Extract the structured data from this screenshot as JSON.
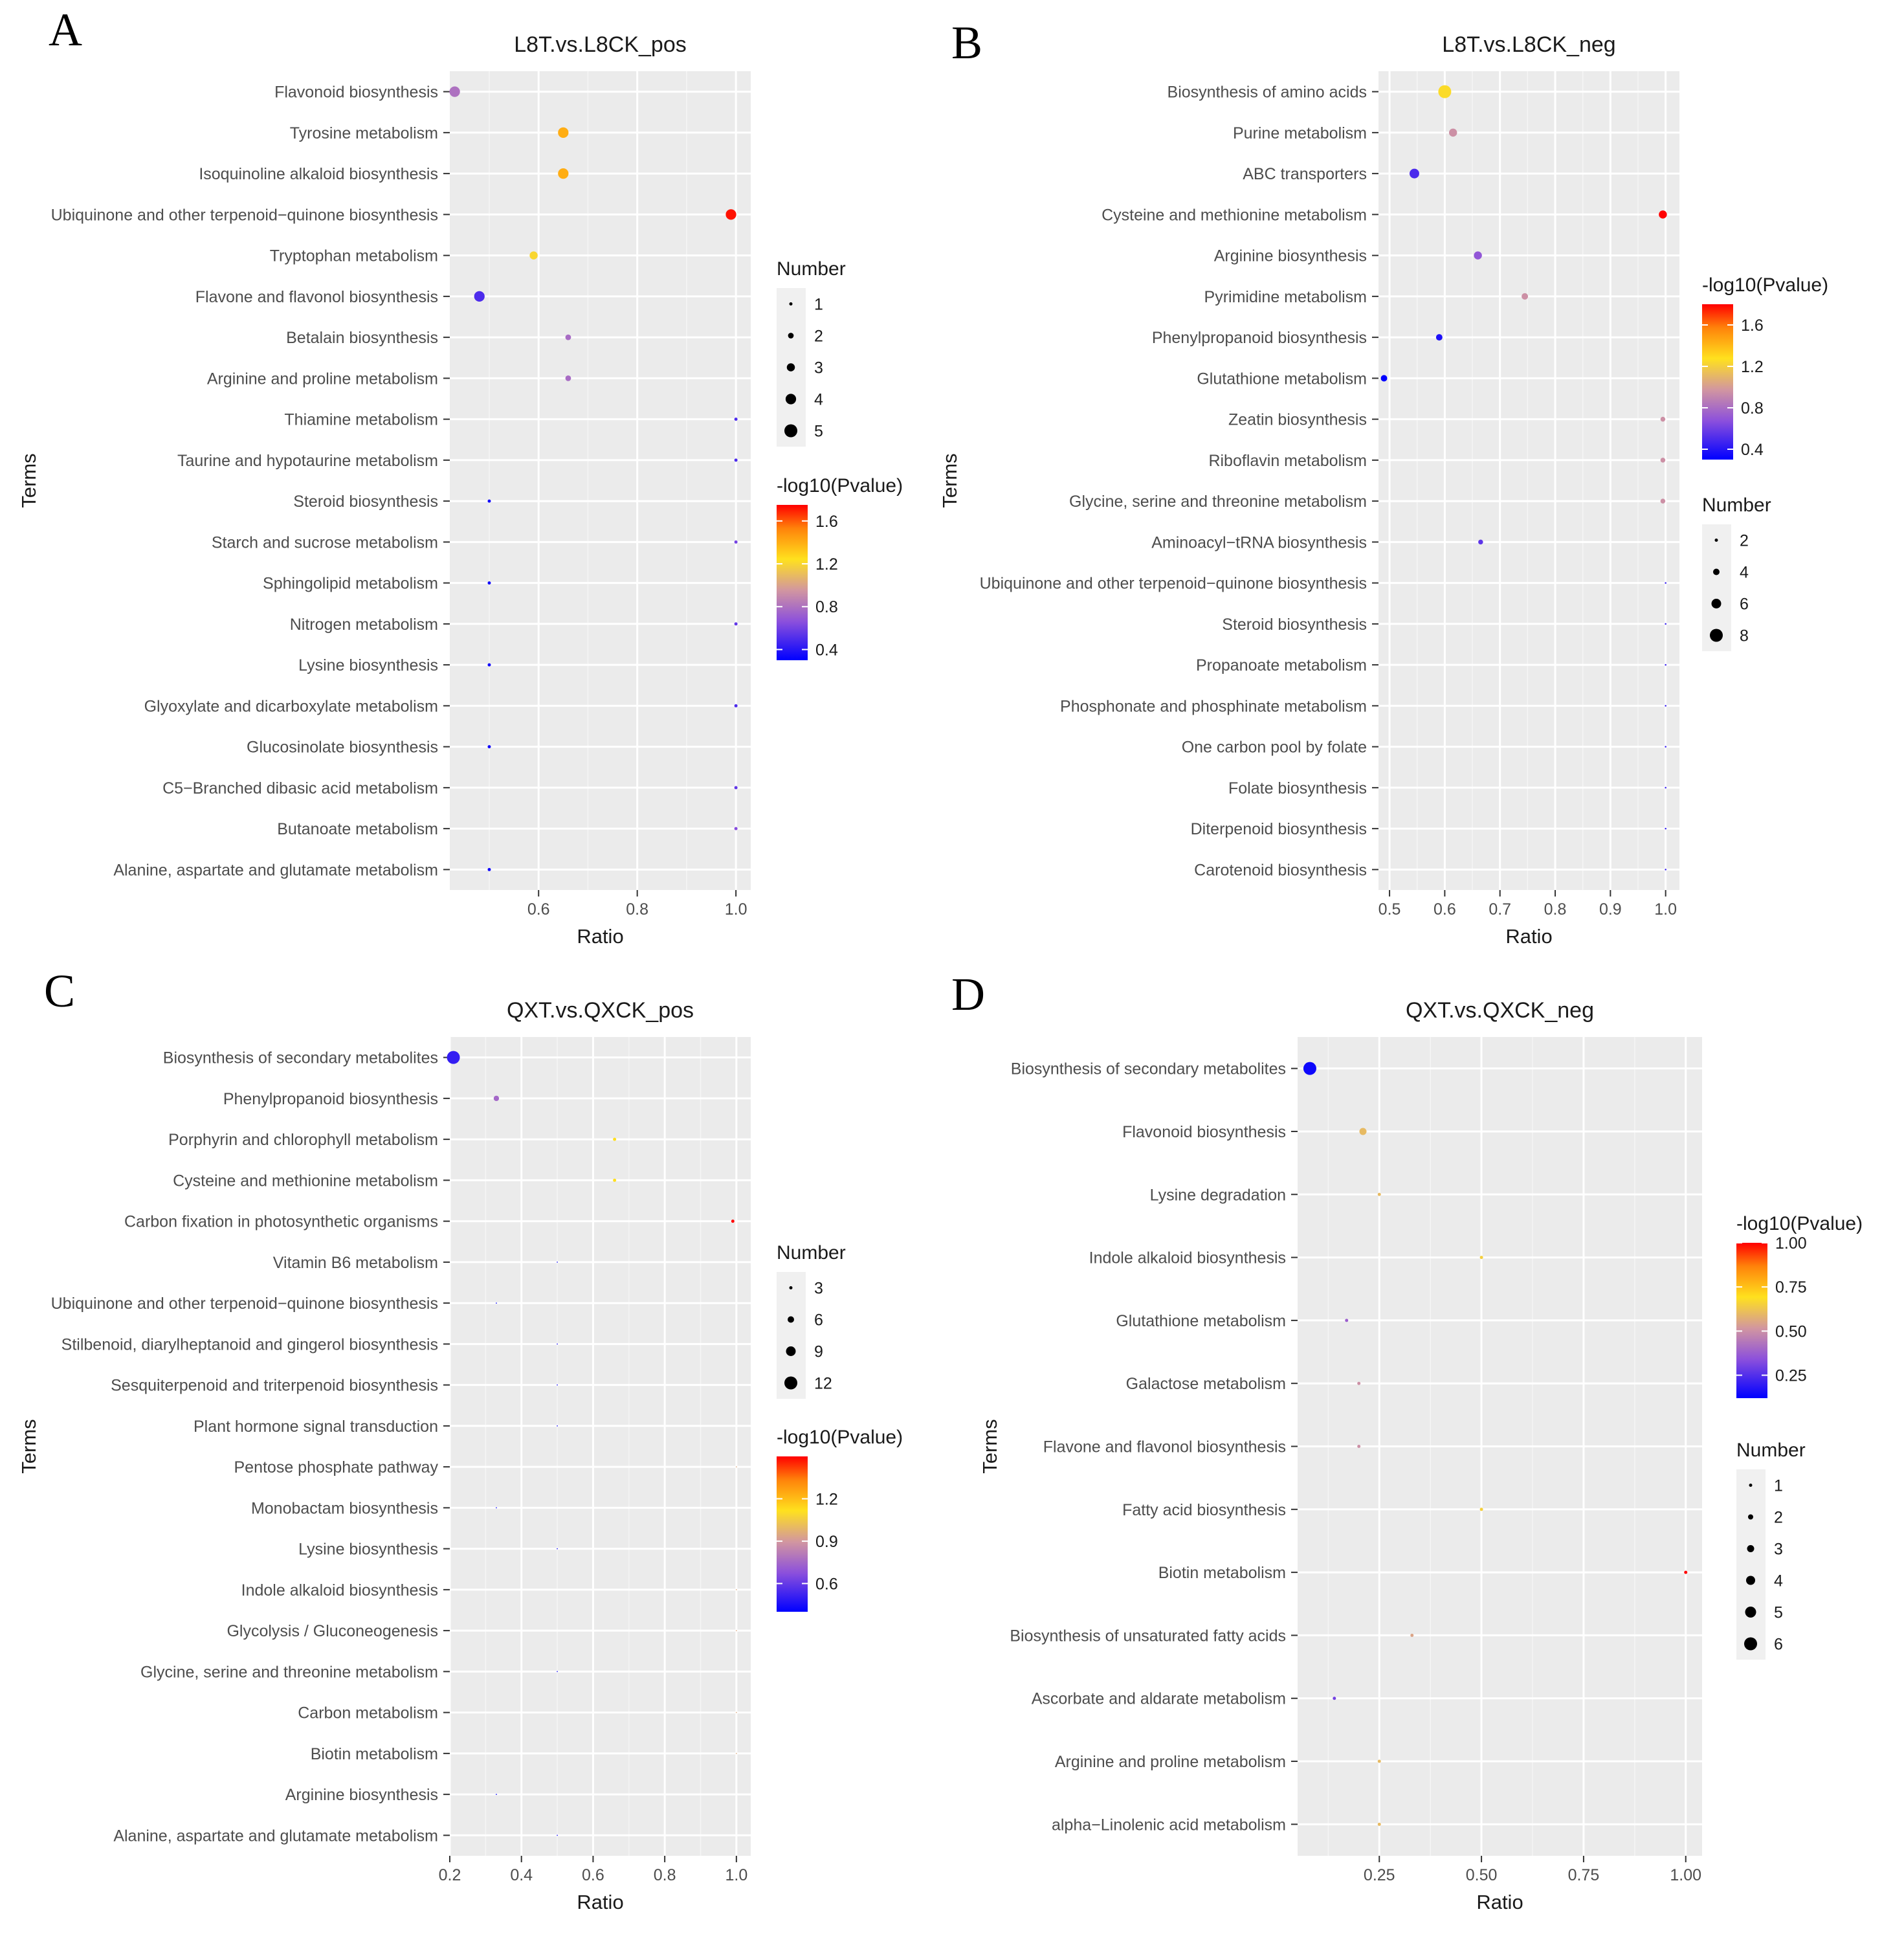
{
  "chart_data": [
    {
      "label": "A",
      "type": "scatter",
      "title": "L8T.vs.L8CK_pos",
      "xlabel": "Ratio",
      "ylabel": "Terms",
      "xlim": [
        0.42,
        1.03
      ],
      "xticks": [
        0.6,
        0.8,
        1.0
      ],
      "xtick_labels": [
        "0.6",
        "0.8",
        "1.0"
      ],
      "size_legend": {
        "title": "Number",
        "values": [
          1,
          2,
          3,
          4,
          5
        ],
        "labels": [
          "1",
          "2",
          "3",
          "4",
          "5"
        ]
      },
      "color_legend": {
        "title": "-log10(Pvalue)",
        "min": 0.3,
        "max": 1.75,
        "ticks": [
          1.6,
          1.2,
          0.8,
          0.4
        ],
        "labels": [
          "1.6",
          "1.2",
          "0.8",
          "0.4"
        ]
      },
      "points": [
        {
          "term": "Flavonoid biosynthesis",
          "ratio": 0.43,
          "number": 4,
          "logp": 0.8
        },
        {
          "term": "Tyrosine metabolism",
          "ratio": 0.65,
          "number": 4,
          "logp": 1.4
        },
        {
          "term": "Isoquinoline alkaloid biosynthesis",
          "ratio": 0.65,
          "number": 4,
          "logp": 1.4
        },
        {
          "term": "Ubiquinone and other terpenoid−quinone biosynthesis",
          "ratio": 0.99,
          "number": 4,
          "logp": 1.72
        },
        {
          "term": "Tryptophan metabolism",
          "ratio": 0.59,
          "number": 3,
          "logp": 1.2
        },
        {
          "term": "Flavone and flavonol biosynthesis",
          "ratio": 0.48,
          "number": 4,
          "logp": 0.5
        },
        {
          "term": "Betalain biosynthesis",
          "ratio": 0.66,
          "number": 2,
          "logp": 0.78
        },
        {
          "term": "Arginine and proline metabolism",
          "ratio": 0.66,
          "number": 2,
          "logp": 0.78
        },
        {
          "term": "Thiamine metabolism",
          "ratio": 1.0,
          "number": 1,
          "logp": 0.5
        },
        {
          "term": "Taurine and hypotaurine metabolism",
          "ratio": 1.0,
          "number": 1,
          "logp": 0.5
        },
        {
          "term": "Steroid biosynthesis",
          "ratio": 0.5,
          "number": 1,
          "logp": 0.35
        },
        {
          "term": "Starch and sucrose metabolism",
          "ratio": 1.0,
          "number": 1,
          "logp": 0.6
        },
        {
          "term": "Sphingolipid metabolism",
          "ratio": 0.5,
          "number": 1,
          "logp": 0.35
        },
        {
          "term": "Nitrogen metabolism",
          "ratio": 1.0,
          "number": 1,
          "logp": 0.55
        },
        {
          "term": "Lysine biosynthesis",
          "ratio": 0.5,
          "number": 1,
          "logp": 0.35
        },
        {
          "term": "Glyoxylate and dicarboxylate metabolism",
          "ratio": 1.0,
          "number": 1,
          "logp": 0.5
        },
        {
          "term": "Glucosinolate biosynthesis",
          "ratio": 0.5,
          "number": 1,
          "logp": 0.35
        },
        {
          "term": "C5−Branched dibasic acid metabolism",
          "ratio": 1.0,
          "number": 1,
          "logp": 0.55
        },
        {
          "term": "Butanoate metabolism",
          "ratio": 1.0,
          "number": 1,
          "logp": 0.65
        },
        {
          "term": "Alanine, aspartate and glutamate metabolism",
          "ratio": 0.5,
          "number": 1,
          "logp": 0.35
        }
      ]
    },
    {
      "label": "B",
      "type": "scatter",
      "title": "L8T.vs.L8CK_neg",
      "xlabel": "Ratio",
      "ylabel": "Terms",
      "xlim": [
        0.48,
        1.025
      ],
      "xticks": [
        0.5,
        0.6,
        0.7,
        0.8,
        0.9,
        1.0
      ],
      "xtick_labels": [
        "0.5",
        "0.6",
        "0.7",
        "0.8",
        "0.9",
        "1.0"
      ],
      "size_legend": {
        "title": "Number",
        "values": [
          2,
          4,
          6,
          8
        ],
        "labels": [
          "2",
          "4",
          "6",
          "8"
        ]
      },
      "color_legend": {
        "title": "-log10(Pvalue)",
        "min": 0.3,
        "max": 1.8,
        "ticks": [
          1.6,
          1.2,
          0.8,
          0.4
        ],
        "labels": [
          "1.6",
          "1.2",
          "0.8",
          "0.4"
        ]
      },
      "points": [
        {
          "term": "Biosynthesis of amino acids",
          "ratio": 0.6,
          "number": 8,
          "logp": 1.25
        },
        {
          "term": "Purine metabolism",
          "ratio": 0.615,
          "number": 5,
          "logp": 0.95
        },
        {
          "term": "ABC transporters",
          "ratio": 0.545,
          "number": 6,
          "logp": 0.5
        },
        {
          "term": "Cysteine and methionine metabolism",
          "ratio": 0.995,
          "number": 5,
          "logp": 1.8
        },
        {
          "term": "Arginine biosynthesis",
          "ratio": 0.66,
          "number": 5,
          "logp": 0.7
        },
        {
          "term": "Pyrimidine metabolism",
          "ratio": 0.745,
          "number": 4,
          "logp": 0.95
        },
        {
          "term": "Phenylpropanoid biosynthesis",
          "ratio": 0.59,
          "number": 4,
          "logp": 0.38
        },
        {
          "term": "Glutathione metabolism",
          "ratio": 0.49,
          "number": 4,
          "logp": 0.3
        },
        {
          "term": "Zeatin biosynthesis",
          "ratio": 0.995,
          "number": 3,
          "logp": 0.95
        },
        {
          "term": "Riboflavin metabolism",
          "ratio": 0.995,
          "number": 3,
          "logp": 0.95
        },
        {
          "term": "Glycine, serine and threonine metabolism",
          "ratio": 0.995,
          "number": 3,
          "logp": 0.95
        },
        {
          "term": "Aminoacyl−tRNA biosynthesis",
          "ratio": 0.665,
          "number": 3,
          "logp": 0.55
        },
        {
          "term": "Ubiquinone and other terpenoid−quinone biosynthesis",
          "ratio": 1.0,
          "number": 1,
          "logp": 0.45
        },
        {
          "term": "Steroid biosynthesis",
          "ratio": 1.0,
          "number": 1,
          "logp": 0.45
        },
        {
          "term": "Propanoate metabolism",
          "ratio": 1.0,
          "number": 1,
          "logp": 0.45
        },
        {
          "term": "Phosphonate and phosphinate metabolism",
          "ratio": 1.0,
          "number": 1,
          "logp": 0.45
        },
        {
          "term": "One carbon pool by folate",
          "ratio": 1.0,
          "number": 1,
          "logp": 0.45
        },
        {
          "term": "Folate biosynthesis",
          "ratio": 1.0,
          "number": 1,
          "logp": 0.45
        },
        {
          "term": "Diterpenoid biosynthesis",
          "ratio": 1.0,
          "number": 1,
          "logp": 0.45
        },
        {
          "term": "Carotenoid biosynthesis",
          "ratio": 1.0,
          "number": 1,
          "logp": 0.45
        }
      ]
    },
    {
      "label": "C",
      "type": "scatter",
      "title": "QXT.vs.QXCK_pos",
      "xlabel": "Ratio",
      "ylabel": "Terms",
      "xlim": [
        0.2,
        1.04
      ],
      "xticks": [
        0.2,
        0.4,
        0.6,
        0.8,
        1.0
      ],
      "xtick_labels": [
        "0.2",
        "0.4",
        "0.6",
        "0.8",
        "1.0"
      ],
      "size_legend": {
        "title": "Number",
        "values": [
          3,
          6,
          9,
          12
        ],
        "labels": [
          "3",
          "6",
          "9",
          "12"
        ]
      },
      "color_legend": {
        "title": "-log10(Pvalue)",
        "min": 0.4,
        "max": 1.5,
        "ticks": [
          1.2,
          0.9,
          0.6
        ],
        "labels": [
          "1.2",
          "0.9",
          "0.6"
        ]
      },
      "points": [
        {
          "term": "Biosynthesis of secondary metabolites",
          "ratio": 0.21,
          "number": 12,
          "logp": 0.5
        },
        {
          "term": "Phenylpropanoid biosynthesis",
          "ratio": 0.33,
          "number": 5,
          "logp": 0.75
        },
        {
          "term": "Porphyrin and chlorophyll metabolism",
          "ratio": 0.66,
          "number": 3,
          "logp": 1.12
        },
        {
          "term": "Cysteine and methionine metabolism",
          "ratio": 0.66,
          "number": 3,
          "logp": 1.12
        },
        {
          "term": "Carbon fixation in photosynthetic organisms",
          "ratio": 0.99,
          "number": 3,
          "logp": 1.5
        },
        {
          "term": "Vitamin B6 metabolism",
          "ratio": 0.5,
          "number": 1,
          "logp": 0.45
        },
        {
          "term": "Ubiquinone and other terpenoid−quinone biosynthesis",
          "ratio": 0.33,
          "number": 1,
          "logp": 0.42
        },
        {
          "term": "Stilbenoid, diarylheptanoid and gingerol biosynthesis",
          "ratio": 0.5,
          "number": 1,
          "logp": 0.45
        },
        {
          "term": "Sesquiterpenoid and triterpenoid biosynthesis",
          "ratio": 0.5,
          "number": 1,
          "logp": 0.45
        },
        {
          "term": "Plant hormone signal transduction",
          "ratio": 0.5,
          "number": 1,
          "logp": 0.45
        },
        {
          "term": "Pentose phosphate pathway",
          "ratio": 1.0,
          "number": 1,
          "logp": 0.95
        },
        {
          "term": "Monobactam biosynthesis",
          "ratio": 0.33,
          "number": 1,
          "logp": 0.42
        },
        {
          "term": "Lysine biosynthesis",
          "ratio": 0.5,
          "number": 1,
          "logp": 0.45
        },
        {
          "term": "Indole alkaloid biosynthesis",
          "ratio": 1.0,
          "number": 1,
          "logp": 0.95
        },
        {
          "term": "Glycolysis / Gluconeogenesis",
          "ratio": 1.0,
          "number": 1,
          "logp": 0.95
        },
        {
          "term": "Glycine, serine and threonine metabolism",
          "ratio": 0.5,
          "number": 1,
          "logp": 0.45
        },
        {
          "term": "Carbon metabolism",
          "ratio": 1.0,
          "number": 1,
          "logp": 0.95
        },
        {
          "term": "Biotin metabolism",
          "ratio": 1.0,
          "number": 1,
          "logp": 0.95
        },
        {
          "term": "Arginine biosynthesis",
          "ratio": 0.33,
          "number": 1,
          "logp": 0.42
        },
        {
          "term": "Alanine, aspartate and glutamate metabolism",
          "ratio": 0.5,
          "number": 1,
          "logp": 0.45
        }
      ]
    },
    {
      "label": "D",
      "type": "scatter",
      "title": "QXT.vs.QXCK_neg",
      "xlabel": "Ratio",
      "ylabel": "Terms",
      "xlim": [
        0.05,
        1.04
      ],
      "xticks": [
        0.25,
        0.5,
        0.75,
        1.0
      ],
      "xtick_labels": [
        "0.25",
        "0.50",
        "0.75",
        "1.00"
      ],
      "size_legend": {
        "title": "Number",
        "values": [
          1,
          2,
          3,
          4,
          5,
          6
        ],
        "labels": [
          "1",
          "2",
          "3",
          "4",
          "5",
          "6"
        ]
      },
      "color_legend": {
        "title": "-log10(Pvalue)",
        "min": 0.12,
        "max": 1.0,
        "ticks": [
          1.0,
          0.75,
          0.5,
          0.25
        ],
        "labels": [
          "1.00",
          "0.75",
          "0.50",
          "0.25"
        ]
      },
      "points": [
        {
          "term": "Biosynthesis of secondary metabolites",
          "ratio": 0.08,
          "number": 6,
          "logp": 0.14
        },
        {
          "term": "Flavonoid biosynthesis",
          "ratio": 0.21,
          "number": 3,
          "logp": 0.6
        },
        {
          "term": "Lysine degradation",
          "ratio": 0.25,
          "number": 1,
          "logp": 0.6
        },
        {
          "term": "Indole alkaloid biosynthesis",
          "ratio": 0.5,
          "number": 1,
          "logp": 0.65
        },
        {
          "term": "Glutathione metabolism",
          "ratio": 0.17,
          "number": 1,
          "logp": 0.38
        },
        {
          "term": "Galactose metabolism",
          "ratio": 0.2,
          "number": 1,
          "logp": 0.5
        },
        {
          "term": "Flavone and flavonol biosynthesis",
          "ratio": 0.2,
          "number": 1,
          "logp": 0.5
        },
        {
          "term": "Fatty acid biosynthesis",
          "ratio": 0.5,
          "number": 1,
          "logp": 0.65
        },
        {
          "term": "Biotin metabolism",
          "ratio": 1.0,
          "number": 1,
          "logp": 1.0
        },
        {
          "term": "Biosynthesis of unsaturated fatty acids",
          "ratio": 0.33,
          "number": 1,
          "logp": 0.55
        },
        {
          "term": "Ascorbate and aldarate metabolism",
          "ratio": 0.14,
          "number": 1,
          "logp": 0.3
        },
        {
          "term": "Arginine and proline metabolism",
          "ratio": 0.25,
          "number": 1,
          "logp": 0.6
        },
        {
          "term": "alpha−Linolenic acid metabolism",
          "ratio": 0.25,
          "number": 1,
          "logp": 0.6
        }
      ]
    }
  ]
}
